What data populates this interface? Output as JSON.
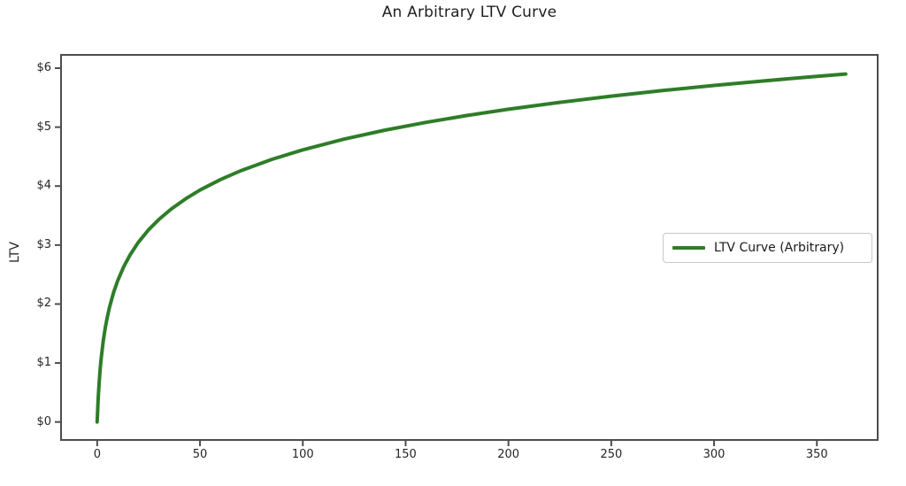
{
  "chart_data": {
    "type": "line",
    "title": "An Arbitrary LTV Curve",
    "xlabel": "",
    "ylabel": "LTV",
    "x_tick_values": [
      0,
      50,
      100,
      150,
      200,
      250,
      300,
      350
    ],
    "x_tick_labels": [
      "0",
      "50",
      "100",
      "150",
      "200",
      "250",
      "300",
      "350"
    ],
    "y_tick_values": [
      0,
      1,
      2,
      3,
      4,
      5,
      6
    ],
    "y_tick_labels": [
      "$0",
      "$1",
      "$2",
      "$3",
      "$4",
      "$5",
      "$6"
    ],
    "xlim": [
      -18,
      380
    ],
    "ylim": [
      -0.32,
      6.24
    ],
    "grid": false,
    "legend": {
      "label": "LTV Curve (Arbitrary)",
      "position": "center-right"
    },
    "series": [
      {
        "name": "LTV Curve (Arbitrary)",
        "color": "#2e7d28",
        "line_width": 4,
        "points": [
          [
            0,
            0.0
          ],
          [
            0.5,
            0.405
          ],
          [
            1,
            0.693
          ],
          [
            1.5,
            0.916
          ],
          [
            2,
            1.099
          ],
          [
            3,
            1.386
          ],
          [
            4,
            1.609
          ],
          [
            5,
            1.792
          ],
          [
            6,
            1.946
          ],
          [
            8,
            2.197
          ],
          [
            10,
            2.398
          ],
          [
            13,
            2.639
          ],
          [
            16,
            2.833
          ],
          [
            20,
            3.045
          ],
          [
            25,
            3.258
          ],
          [
            30,
            3.434
          ],
          [
            36,
            3.611
          ],
          [
            43,
            3.784
          ],
          [
            50,
            3.932
          ],
          [
            60,
            4.111
          ],
          [
            70,
            4.263
          ],
          [
            85,
            4.454
          ],
          [
            100,
            4.615
          ],
          [
            120,
            4.796
          ],
          [
            140,
            4.949
          ],
          [
            160,
            5.081
          ],
          [
            180,
            5.198
          ],
          [
            200,
            5.303
          ],
          [
            225,
            5.421
          ],
          [
            250,
            5.525
          ],
          [
            275,
            5.62
          ],
          [
            300,
            5.707
          ],
          [
            325,
            5.787
          ],
          [
            350,
            5.861
          ],
          [
            364,
            5.9
          ]
        ]
      }
    ]
  },
  "colors": {
    "line": "#2e7d28",
    "spine": "#4d4d4d",
    "tick_text": "#262626",
    "legend_border": "#c8c8c8",
    "background": "#ffffff"
  }
}
